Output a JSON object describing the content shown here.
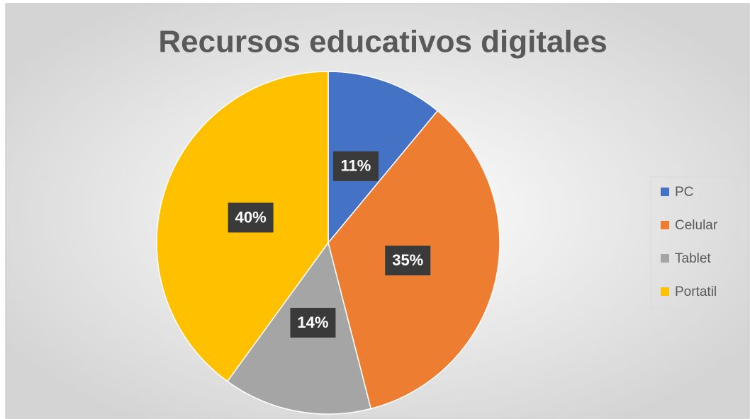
{
  "chart_data": {
    "type": "pie",
    "title": "Recursos educativos digitales",
    "categories": [
      "PC",
      "Celular",
      "Tablet",
      "Portatil"
    ],
    "values": [
      11,
      35,
      14,
      40
    ],
    "value_labels": [
      "11%",
      "35%",
      "14%",
      "40%"
    ],
    "colors": [
      "#4472c4",
      "#ed7d31",
      "#a5a5a5",
      "#ffc000"
    ],
    "legend": "right"
  }
}
